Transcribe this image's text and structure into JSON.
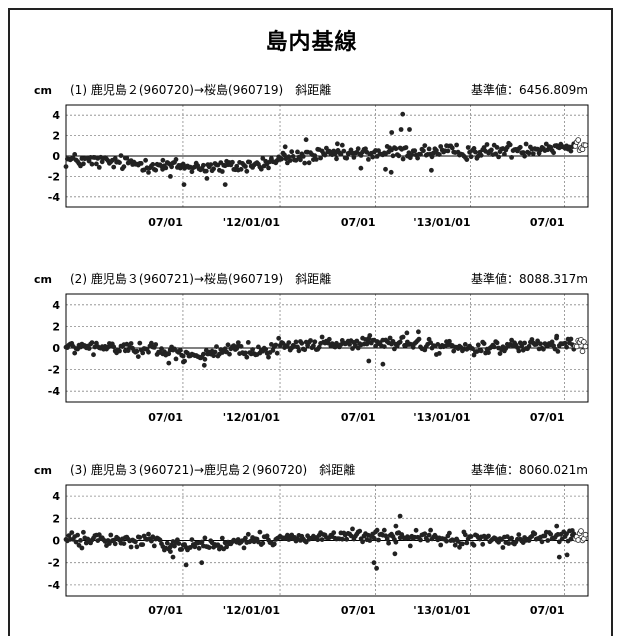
{
  "title": "島内基線",
  "chart_data": [
    {
      "type": "scatter",
      "unit": "cm",
      "label": "(1) 鹿児島２(960720)→桜島(960719)　斜距離",
      "reference": "基準値：6456.809m",
      "ylim": [
        -5,
        5
      ],
      "yticks": [
        4,
        2,
        0,
        -2,
        -4
      ],
      "xlim": [
        0,
        1
      ],
      "xticks": [
        {
          "x": 0.224,
          "label": "07/01"
        },
        {
          "x": 0.41,
          "label": "'12/01/01"
        },
        {
          "x": 0.593,
          "label": "07/01"
        },
        {
          "x": 0.775,
          "label": "'13/01/01"
        },
        {
          "x": 0.955,
          "label": "07/01"
        }
      ],
      "grid": true,
      "trend": [
        [
          0,
          -0.4
        ],
        [
          0.12,
          -0.7
        ],
        [
          0.22,
          -1.0
        ],
        [
          0.3,
          -1.1
        ],
        [
          0.38,
          -0.8
        ],
        [
          0.42,
          -0.2
        ],
        [
          0.5,
          0.1
        ],
        [
          0.6,
          0.3
        ],
        [
          0.7,
          0.4
        ],
        [
          0.8,
          0.4
        ],
        [
          0.9,
          0.8
        ],
        [
          1.0,
          1.1
        ]
      ],
      "noise": 0.35,
      "outliers": [
        [
          0.645,
          4.1
        ],
        [
          0.624,
          2.3
        ],
        [
          0.642,
          2.6
        ],
        [
          0.658,
          2.6
        ],
        [
          0.46,
          1.6
        ],
        [
          0.42,
          0.9
        ],
        [
          0.226,
          -2.8
        ],
        [
          0.305,
          -2.8
        ],
        [
          0.27,
          -2.2
        ],
        [
          0.2,
          -2.0
        ],
        [
          0.185,
          -1.3
        ],
        [
          0.565,
          -1.2
        ],
        [
          0.612,
          -1.3
        ],
        [
          0.623,
          -1.6
        ],
        [
          0.52,
          1.2
        ],
        [
          0.62,
          0.8
        ],
        [
          0.7,
          -1.4
        ]
      ],
      "open_markers_from": 0.975
    },
    {
      "type": "scatter",
      "unit": "cm",
      "label": "(2) 鹿児島３(960721)→桜島(960719)　斜距離",
      "reference": "基準値：8088.317m",
      "ylim": [
        -5,
        5
      ],
      "yticks": [
        4,
        2,
        0,
        -2,
        -4
      ],
      "xlim": [
        0,
        1
      ],
      "xticks": [
        {
          "x": 0.224,
          "label": "07/01"
        },
        {
          "x": 0.41,
          "label": "'12/01/01"
        },
        {
          "x": 0.593,
          "label": "07/01"
        },
        {
          "x": 0.775,
          "label": "'13/01/01"
        },
        {
          "x": 0.955,
          "label": "07/01"
        }
      ],
      "grid": true,
      "trend": [
        [
          0,
          0.05
        ],
        [
          0.15,
          0.0
        ],
        [
          0.2,
          -0.4
        ],
        [
          0.25,
          -0.6
        ],
        [
          0.3,
          -0.5
        ],
        [
          0.38,
          -0.1
        ],
        [
          0.42,
          0.2
        ],
        [
          0.55,
          0.5
        ],
        [
          0.65,
          0.4
        ],
        [
          0.75,
          0.0
        ],
        [
          0.85,
          0.1
        ],
        [
          1.0,
          0.3
        ]
      ],
      "noise": 0.3,
      "outliers": [
        [
          0.58,
          -1.2
        ],
        [
          0.607,
          -1.5
        ],
        [
          0.653,
          1.4
        ],
        [
          0.675,
          1.5
        ],
        [
          0.58,
          0.9
        ],
        [
          0.197,
          -1.4
        ],
        [
          0.225,
          -1.3
        ],
        [
          0.265,
          -1.6
        ],
        [
          0.94,
          1.1
        ],
        [
          0.33,
          0.5
        ]
      ],
      "open_markers_from": 0.975
    },
    {
      "type": "scatter",
      "unit": "cm",
      "label": "(3) 鹿児島３(960721)→鹿児島２(960720)　斜距離",
      "reference": "基準値：8060.021m",
      "ylim": [
        -5,
        5
      ],
      "yticks": [
        4,
        2,
        0,
        -2,
        -4
      ],
      "xlim": [
        0,
        1
      ],
      "xticks": [
        {
          "x": 0.224,
          "label": "07/01"
        },
        {
          "x": 0.41,
          "label": "'12/01/01"
        },
        {
          "x": 0.593,
          "label": "07/01"
        },
        {
          "x": 0.775,
          "label": "'13/01/01"
        },
        {
          "x": 0.955,
          "label": "07/01"
        }
      ],
      "grid": true,
      "trend": [
        [
          0,
          0.1
        ],
        [
          0.15,
          0.0
        ],
        [
          0.2,
          -0.3
        ],
        [
          0.28,
          -0.4
        ],
        [
          0.35,
          -0.1
        ],
        [
          0.45,
          0.3
        ],
        [
          0.55,
          0.4
        ],
        [
          0.65,
          0.3
        ],
        [
          0.75,
          0.0
        ],
        [
          0.85,
          0.1
        ],
        [
          0.95,
          0.4
        ],
        [
          1.0,
          0.2
        ]
      ],
      "noise": 0.3,
      "outliers": [
        [
          0.595,
          -2.5
        ],
        [
          0.59,
          -2.0
        ],
        [
          0.64,
          2.2
        ],
        [
          0.632,
          1.3
        ],
        [
          0.205,
          -1.5
        ],
        [
          0.23,
          -2.2
        ],
        [
          0.26,
          -2.0
        ],
        [
          0.2,
          -1.0
        ],
        [
          0.94,
          1.3
        ],
        [
          0.945,
          -1.5
        ],
        [
          0.96,
          -1.3
        ],
        [
          0.63,
          -1.2
        ],
        [
          0.97,
          0.9
        ]
      ],
      "open_markers_from": 0.975
    }
  ]
}
